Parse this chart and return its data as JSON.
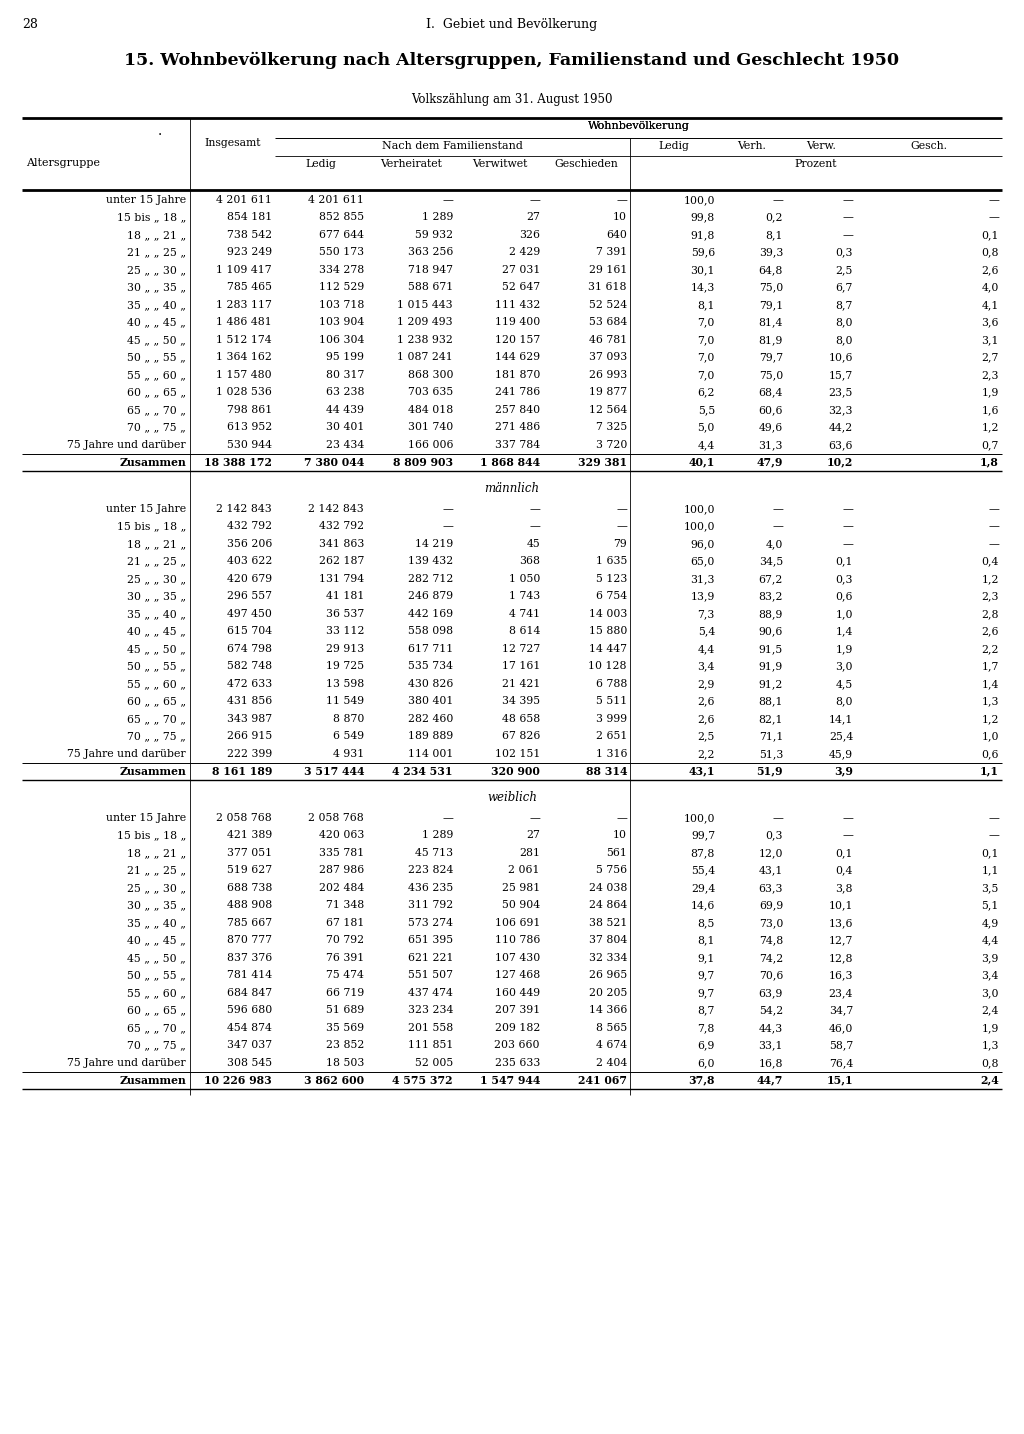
{
  "page_number": "28",
  "chapter": "I.  Gebiet und Bevölkerung",
  "title": "15. Wohnbevölkerung nach Altersgruppen, Familienstand und Geschlecht 1950",
  "subtitle": "Volkszählung am 31. August 1950",
  "col_header_wb": "Wohnbevölkerung",
  "col_header_ndf": "Nach dem Familienstand",
  "col_header_prozent": "Prozent",
  "col_altersgruppe": "Altersgruppe",
  "col_insgesamt": "Insgesamt",
  "col_ledig": "Ledig",
  "col_verheiratet": "Verheiratet",
  "col_verwitwet": "Verwitwet",
  "col_geschieden": "Geschieden",
  "col_ledig_pct": "Ledig",
  "col_verh_pct": "Verh.",
  "col_verw_pct": "Verw.",
  "col_gesch_pct": "Gesch.",
  "sections": [
    {
      "label": "",
      "rows": [
        [
          "unter 15 Jahre",
          "4 201 611",
          "4 201 611",
          "—",
          "—",
          "—",
          "100,0",
          "—",
          "—",
          "—"
        ],
        [
          "15 bis „ 18 „",
          "854 181",
          "852 855",
          "1 289",
          "27",
          "10",
          "99,8",
          "0,2",
          "—",
          "—"
        ],
        [
          "18 „ „ 21 „",
          "738 542",
          "677 644",
          "59 932",
          "326",
          "640",
          "91,8",
          "8,1",
          "—",
          "0,1"
        ],
        [
          "21 „ „ 25 „",
          "923 249",
          "550 173",
          "363 256",
          "2 429",
          "7 391",
          "59,6",
          "39,3",
          "0,3",
          "0,8"
        ],
        [
          "25 „ „ 30 „",
          "1 109 417",
          "334 278",
          "718 947",
          "27 031",
          "29 161",
          "30,1",
          "64,8",
          "2,5",
          "2,6"
        ],
        [
          "30 „ „ 35 „",
          "785 465",
          "112 529",
          "588 671",
          "52 647",
          "31 618",
          "14,3",
          "75,0",
          "6,7",
          "4,0"
        ],
        [
          "35 „ „ 40 „",
          "1 283 117",
          "103 718",
          "1 015 443",
          "111 432",
          "52 524",
          "8,1",
          "79,1",
          "8,7",
          "4,1"
        ],
        [
          "40 „ „ 45 „",
          "1 486 481",
          "103 904",
          "1 209 493",
          "119 400",
          "53 684",
          "7,0",
          "81,4",
          "8,0",
          "3,6"
        ],
        [
          "45 „ „ 50 „",
          "1 512 174",
          "106 304",
          "1 238 932",
          "120 157",
          "46 781",
          "7,0",
          "81,9",
          "8,0",
          "3,1"
        ],
        [
          "50 „ „ 55 „",
          "1 364 162",
          "95 199",
          "1 087 241",
          "144 629",
          "37 093",
          "7,0",
          "79,7",
          "10,6",
          "2,7"
        ],
        [
          "55 „ „ 60 „",
          "1 157 480",
          "80 317",
          "868 300",
          "181 870",
          "26 993",
          "7,0",
          "75,0",
          "15,7",
          "2,3"
        ],
        [
          "60 „ „ 65 „",
          "1 028 536",
          "63 238",
          "703 635",
          "241 786",
          "19 877",
          "6,2",
          "68,4",
          "23,5",
          "1,9"
        ],
        [
          "65 „ „ 70 „",
          "798 861",
          "44 439",
          "484 018",
          "257 840",
          "12 564",
          "5,5",
          "60,6",
          "32,3",
          "1,6"
        ],
        [
          "70 „ „ 75 „",
          "613 952",
          "30 401",
          "301 740",
          "271 486",
          "7 325",
          "5,0",
          "49,6",
          "44,2",
          "1,2"
        ],
        [
          "75 Jahre und darüber",
          "530 944",
          "23 434",
          "166 006",
          "337 784",
          "3 720",
          "4,4",
          "31,3",
          "63,6",
          "0,7"
        ],
        [
          "Zusammen",
          "18 388 172",
          "7 380 044",
          "8 809 903",
          "1 868 844",
          "329 381",
          "40,1",
          "47,9",
          "10,2",
          "1,8"
        ]
      ]
    },
    {
      "label": "männlich",
      "rows": [
        [
          "unter 15 Jahre",
          "2 142 843",
          "2 142 843",
          "—",
          "—",
          "—",
          "100,0",
          "—",
          "—",
          "—"
        ],
        [
          "15 bis „ 18 „",
          "432 792",
          "432 792",
          "—",
          "—",
          "—",
          "100,0",
          "—",
          "—",
          "—"
        ],
        [
          "18 „ „ 21 „",
          "356 206",
          "341 863",
          "14 219",
          "45",
          "79",
          "96,0",
          "4,0",
          "—",
          "—"
        ],
        [
          "21 „ „ 25 „",
          "403 622",
          "262 187",
          "139 432",
          "368",
          "1 635",
          "65,0",
          "34,5",
          "0,1",
          "0,4"
        ],
        [
          "25 „ „ 30 „",
          "420 679",
          "131 794",
          "282 712",
          "1 050",
          "5 123",
          "31,3",
          "67,2",
          "0,3",
          "1,2"
        ],
        [
          "30 „ „ 35 „",
          "296 557",
          "41 181",
          "246 879",
          "1 743",
          "6 754",
          "13,9",
          "83,2",
          "0,6",
          "2,3"
        ],
        [
          "35 „ „ 40 „",
          "497 450",
          "36 537",
          "442 169",
          "4 741",
          "14 003",
          "7,3",
          "88,9",
          "1,0",
          "2,8"
        ],
        [
          "40 „ „ 45 „",
          "615 704",
          "33 112",
          "558 098",
          "8 614",
          "15 880",
          "5,4",
          "90,6",
          "1,4",
          "2,6"
        ],
        [
          "45 „ „ 50 „",
          "674 798",
          "29 913",
          "617 711",
          "12 727",
          "14 447",
          "4,4",
          "91,5",
          "1,9",
          "2,2"
        ],
        [
          "50 „ „ 55 „",
          "582 748",
          "19 725",
          "535 734",
          "17 161",
          "10 128",
          "3,4",
          "91,9",
          "3,0",
          "1,7"
        ],
        [
          "55 „ „ 60 „",
          "472 633",
          "13 598",
          "430 826",
          "21 421",
          "6 788",
          "2,9",
          "91,2",
          "4,5",
          "1,4"
        ],
        [
          "60 „ „ 65 „",
          "431 856",
          "11 549",
          "380 401",
          "34 395",
          "5 511",
          "2,6",
          "88,1",
          "8,0",
          "1,3"
        ],
        [
          "65 „ „ 70 „",
          "343 987",
          "8 870",
          "282 460",
          "48 658",
          "3 999",
          "2,6",
          "82,1",
          "14,1",
          "1,2"
        ],
        [
          "70 „ „ 75 „",
          "266 915",
          "6 549",
          "189 889",
          "67 826",
          "2 651",
          "2,5",
          "71,1",
          "25,4",
          "1,0"
        ],
        [
          "75 Jahre und darüber",
          "222 399",
          "4 931",
          "114 001",
          "102 151",
          "1 316",
          "2,2",
          "51,3",
          "45,9",
          "0,6"
        ],
        [
          "Zusammen",
          "8 161 189",
          "3 517 444",
          "4 234 531",
          "320 900",
          "88 314",
          "43,1",
          "51,9",
          "3,9",
          "1,1"
        ]
      ]
    },
    {
      "label": "weiblich",
      "rows": [
        [
          "unter 15 Jahre",
          "2 058 768",
          "2 058 768",
          "—",
          "—",
          "—",
          "100,0",
          "—",
          "—",
          "—"
        ],
        [
          "15 bis „ 18 „",
          "421 389",
          "420 063",
          "1 289",
          "27",
          "10",
          "99,7",
          "0,3",
          "—",
          "—"
        ],
        [
          "18 „ „ 21 „",
          "377 051",
          "335 781",
          "45 713",
          "281",
          "561",
          "87,8",
          "12,0",
          "0,1",
          "0,1"
        ],
        [
          "21 „ „ 25 „",
          "519 627",
          "287 986",
          "223 824",
          "2 061",
          "5 756",
          "55,4",
          "43,1",
          "0,4",
          "1,1"
        ],
        [
          "25 „ „ 30 „",
          "688 738",
          "202 484",
          "436 235",
          "25 981",
          "24 038",
          "29,4",
          "63,3",
          "3,8",
          "3,5"
        ],
        [
          "30 „ „ 35 „",
          "488 908",
          "71 348",
          "311 792",
          "50 904",
          "24 864",
          "14,6",
          "69,9",
          "10,1",
          "5,1"
        ],
        [
          "35 „ „ 40 „",
          "785 667",
          "67 181",
          "573 274",
          "106 691",
          "38 521",
          "8,5",
          "73,0",
          "13,6",
          "4,9"
        ],
        [
          "40 „ „ 45 „",
          "870 777",
          "70 792",
          "651 395",
          "110 786",
          "37 804",
          "8,1",
          "74,8",
          "12,7",
          "4,4"
        ],
        [
          "45 „ „ 50 „",
          "837 376",
          "76 391",
          "621 221",
          "107 430",
          "32 334",
          "9,1",
          "74,2",
          "12,8",
          "3,9"
        ],
        [
          "50 „ „ 55 „",
          "781 414",
          "75 474",
          "551 507",
          "127 468",
          "26 965",
          "9,7",
          "70,6",
          "16,3",
          "3,4"
        ],
        [
          "55 „ „ 60 „",
          "684 847",
          "66 719",
          "437 474",
          "160 449",
          "20 205",
          "9,7",
          "63,9",
          "23,4",
          "3,0"
        ],
        [
          "60 „ „ 65 „",
          "596 680",
          "51 689",
          "323 234",
          "207 391",
          "14 366",
          "8,7",
          "54,2",
          "34,7",
          "2,4"
        ],
        [
          "65 „ „ 70 „",
          "454 874",
          "35 569",
          "201 558",
          "209 182",
          "8 565",
          "7,8",
          "44,3",
          "46,0",
          "1,9"
        ],
        [
          "70 „ „ 75 „",
          "347 037",
          "23 852",
          "111 851",
          "203 660",
          "4 674",
          "6,9",
          "33,1",
          "58,7",
          "1,3"
        ],
        [
          "75 Jahre und darüber",
          "308 545",
          "18 503",
          "52 005",
          "235 633",
          "2 404",
          "6,0",
          "16,8",
          "76,4",
          "0,8"
        ],
        [
          "Zusammen",
          "10 226 983",
          "3 862 600",
          "4 575 372",
          "1 547 944",
          "241 067",
          "37,8",
          "44,7",
          "15,1",
          "2,4"
        ]
      ]
    }
  ]
}
